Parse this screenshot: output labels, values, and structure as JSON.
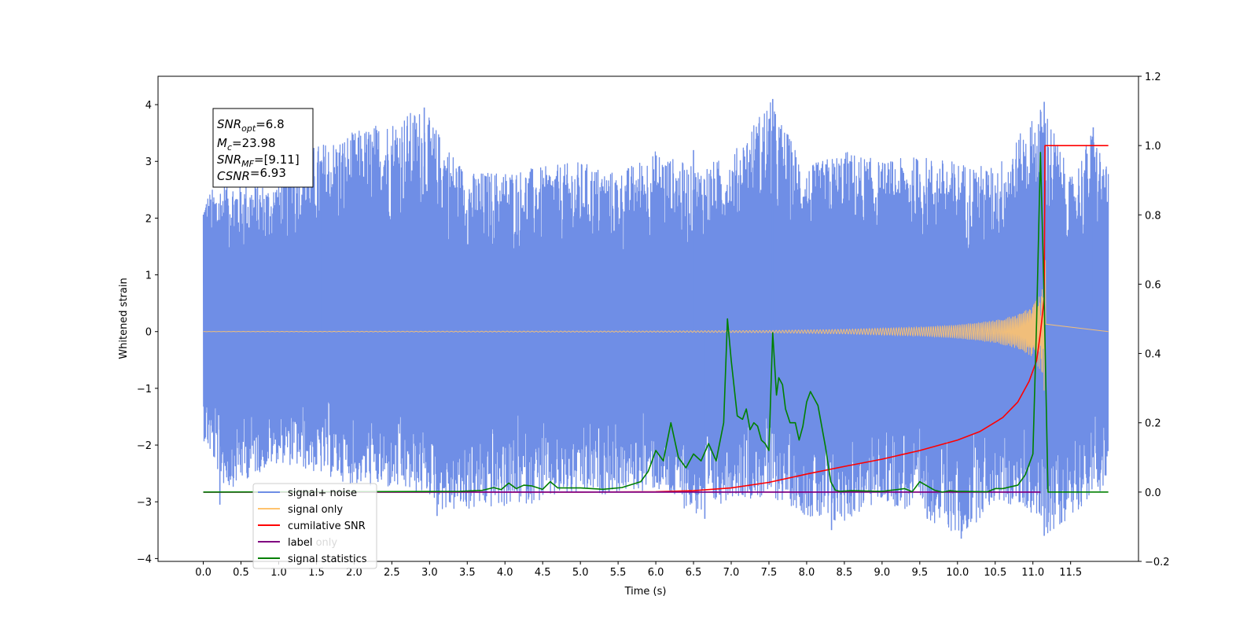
{
  "chart_data": {
    "type": "line",
    "title": "",
    "xlabel": "Time (s)",
    "ylabel": "Whitened strain",
    "xlim": [
      -0.6,
      12.4
    ],
    "ylim": [
      -4.05,
      4.5
    ],
    "y2lim": [
      -0.2,
      1.2
    ],
    "xticks": [
      0.0,
      0.5,
      1.0,
      1.5,
      2.0,
      2.5,
      3.0,
      3.5,
      4.0,
      4.5,
      5.0,
      5.5,
      6.0,
      6.5,
      7.0,
      7.5,
      8.0,
      8.5,
      9.0,
      9.5,
      10.0,
      10.5,
      11.0,
      11.5
    ],
    "xtick_labels": [
      "0.0",
      "0.5",
      "1.0",
      "1.5",
      "2.0",
      "2.5",
      "3.0",
      "3.5",
      "4.0",
      "4.5",
      "5.0",
      "5.5",
      "6.0",
      "6.5",
      "7.0",
      "7.5",
      "8.0",
      "8.5",
      "9.0",
      "9.5",
      "10.0",
      "10.5",
      "11.0",
      "11.5"
    ],
    "yticks": [
      -4,
      -3,
      -2,
      -1,
      0,
      1,
      2,
      3,
      4
    ],
    "ytick_labels": [
      "−4",
      "−3",
      "−2",
      "−1",
      "0",
      "1",
      "2",
      "3",
      "4"
    ],
    "y2ticks": [
      -0.2,
      0.0,
      0.2,
      0.4,
      0.6,
      0.8,
      1.0,
      1.2
    ],
    "y2tick_labels": [
      "−0.2",
      "0.0",
      "0.2",
      "0.4",
      "0.6",
      "0.8",
      "1.0",
      "1.2"
    ],
    "grid": false,
    "legend_position": "bottom-left",
    "annotation": {
      "lines": [
        {
          "sym": "SNR",
          "sub": "opt",
          "value": "=6.8"
        },
        {
          "sym": "M",
          "sub": "c",
          "value": "=23.98"
        },
        {
          "sym": "SNR",
          "sub": "MF",
          "value": "=[9.11]"
        },
        {
          "sym": "CSNR",
          "sub": "",
          "value": "=6.93"
        }
      ]
    },
    "noise": {
      "t_start": 0.0,
      "t_end": 12.0,
      "center": 0.0,
      "upper_envelope": [
        [
          0.0,
          2.4
        ],
        [
          0.3,
          2.7
        ],
        [
          0.9,
          2.6
        ],
        [
          1.3,
          3.2
        ],
        [
          2.9,
          3.95
        ],
        [
          3.5,
          2.8
        ],
        [
          4.5,
          2.9
        ],
        [
          5.0,
          3.0
        ],
        [
          5.5,
          2.8
        ],
        [
          6.0,
          3.2
        ],
        [
          6.5,
          2.9
        ],
        [
          7.0,
          3.1
        ],
        [
          7.5,
          4.1
        ],
        [
          8.0,
          2.9
        ],
        [
          8.5,
          3.2
        ],
        [
          9.0,
          3.0
        ],
        [
          9.5,
          3.1
        ],
        [
          10.0,
          3.0
        ],
        [
          10.5,
          2.9
        ],
        [
          11.15,
          4.05
        ],
        [
          11.5,
          2.7
        ],
        [
          11.8,
          3.6
        ],
        [
          12.0,
          2.8
        ]
      ],
      "lower_envelope": [
        [
          0.0,
          -1.9
        ],
        [
          0.3,
          -2.8
        ],
        [
          1.0,
          -2.3
        ],
        [
          2.0,
          -2.7
        ],
        [
          3.0,
          -2.9
        ],
        [
          3.2,
          -3.2
        ],
        [
          4.0,
          -3.1
        ],
        [
          5.0,
          -2.9
        ],
        [
          6.0,
          -2.8
        ],
        [
          6.6,
          -3.3
        ],
        [
          7.0,
          -2.9
        ],
        [
          7.7,
          -3.0
        ],
        [
          8.3,
          -3.5
        ],
        [
          9.0,
          -3.0
        ],
        [
          9.6,
          -3.3
        ],
        [
          10.05,
          -3.65
        ],
        [
          10.5,
          -3.0
        ],
        [
          11.0,
          -3.2
        ],
        [
          11.2,
          -3.6
        ],
        [
          11.8,
          -2.9
        ],
        [
          12.0,
          -2.7
        ]
      ],
      "spikes_up": [
        [
          2.93,
          3.95
        ],
        [
          7.55,
          4.1
        ],
        [
          11.15,
          4.05
        ],
        [
          11.8,
          3.6
        ],
        [
          6.5,
          3.2
        ],
        [
          1.55,
          3.0
        ]
      ],
      "spikes_down": [
        [
          0.22,
          -3.05
        ],
        [
          3.1,
          -3.25
        ],
        [
          6.65,
          -3.3
        ],
        [
          8.33,
          -3.5
        ],
        [
          10.05,
          -3.65
        ],
        [
          11.15,
          -3.6
        ],
        [
          9.6,
          -3.3
        ]
      ]
    },
    "signal_only": {
      "t_start": 0.0,
      "t_end": 11.17,
      "after_merger_until": 12.0,
      "amplitude_envelope": [
        [
          0.0,
          0.002
        ],
        [
          6.0,
          0.01
        ],
        [
          7.5,
          0.02
        ],
        [
          8.5,
          0.04
        ],
        [
          9.5,
          0.08
        ],
        [
          10.0,
          0.12
        ],
        [
          10.5,
          0.2
        ],
        [
          10.8,
          0.3
        ],
        [
          11.0,
          0.45
        ],
        [
          11.1,
          0.7
        ],
        [
          11.17,
          1.3
        ]
      ]
    },
    "cumulative_snr": {
      "x": [
        0.0,
        5.0,
        6.0,
        6.5,
        7.0,
        7.5,
        8.0,
        8.5,
        9.0,
        9.5,
        10.0,
        10.3,
        10.6,
        10.8,
        10.95,
        11.05,
        11.1,
        11.15,
        11.16,
        11.5,
        12.0
      ],
      "y": [
        0.0,
        0.0,
        0.001,
        0.004,
        0.012,
        0.028,
        0.052,
        0.074,
        0.095,
        0.12,
        0.15,
        0.175,
        0.215,
        0.26,
        0.32,
        0.38,
        0.46,
        0.56,
        1.0,
        1.0,
        1.0
      ]
    },
    "label_only": {
      "x": [
        0.0,
        11.1
      ],
      "y": [
        0.0,
        0.0
      ]
    },
    "signal_statistics": {
      "x": [
        0.0,
        3.4,
        3.7,
        3.85,
        3.95,
        4.05,
        4.15,
        4.25,
        4.35,
        4.5,
        4.6,
        4.7,
        5.0,
        5.3,
        5.55,
        5.8,
        5.9,
        6.0,
        6.1,
        6.2,
        6.3,
        6.4,
        6.5,
        6.6,
        6.7,
        6.8,
        6.9,
        6.95,
        7.0,
        7.08,
        7.15,
        7.2,
        7.25,
        7.3,
        7.35,
        7.4,
        7.45,
        7.5,
        7.55,
        7.6,
        7.63,
        7.68,
        7.72,
        7.78,
        7.85,
        7.9,
        7.95,
        8.0,
        8.05,
        8.15,
        8.25,
        8.32,
        8.38,
        8.45,
        8.5,
        8.6,
        9.0,
        9.3,
        9.4,
        9.5,
        9.7,
        9.8,
        9.9,
        10.0,
        10.4,
        10.5,
        10.6,
        10.8,
        10.9,
        11.0,
        11.05,
        11.1,
        11.15,
        11.2,
        11.25,
        11.3,
        11.5,
        11.8,
        12.0
      ],
      "y": [
        0.0,
        0.002,
        0.005,
        0.013,
        0.007,
        0.026,
        0.01,
        0.02,
        0.018,
        0.008,
        0.03,
        0.012,
        0.012,
        0.008,
        0.013,
        0.03,
        0.06,
        0.12,
        0.09,
        0.2,
        0.1,
        0.07,
        0.11,
        0.09,
        0.14,
        0.09,
        0.2,
        0.5,
        0.38,
        0.22,
        0.21,
        0.24,
        0.18,
        0.2,
        0.19,
        0.15,
        0.14,
        0.12,
        0.46,
        0.28,
        0.33,
        0.31,
        0.24,
        0.2,
        0.2,
        0.15,
        0.19,
        0.26,
        0.29,
        0.25,
        0.13,
        0.03,
        0.005,
        0.002,
        0.003,
        0.004,
        0.002,
        0.01,
        0.001,
        0.03,
        0.005,
        0.0,
        0.004,
        0.002,
        0.001,
        0.01,
        0.01,
        0.02,
        0.05,
        0.11,
        0.5,
        0.98,
        0.55,
        0.0,
        0.0,
        0.0,
        0.0,
        0.0,
        0.0
      ]
    },
    "series": [
      {
        "name": "signal+ noise",
        "color": "#6f8ee6"
      },
      {
        "name": "signal only",
        "color": "#ffc36e"
      },
      {
        "name": "cumilative SNR",
        "color": "#ff0000"
      },
      {
        "name": "label",
        "color": "#800080"
      },
      {
        "name": "label only",
        "color": "#800080"
      },
      {
        "name": "signal statistics",
        "color": "#008000"
      }
    ]
  }
}
